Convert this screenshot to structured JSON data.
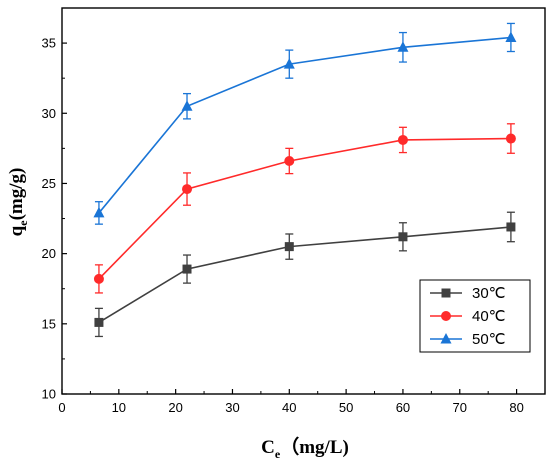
{
  "chart_data": {
    "type": "line",
    "xlabel": {
      "main": "C",
      "sub": "e",
      "rest": "（mg/L)"
    },
    "ylabel": {
      "main": "q",
      "sub": "e",
      "rest": "(mg/g)"
    },
    "xlim": [
      0,
      85
    ],
    "ylim": [
      10,
      37.5
    ],
    "xticks": [
      0,
      10,
      20,
      30,
      40,
      50,
      60,
      70,
      80
    ],
    "yticks": [
      10,
      15,
      20,
      25,
      30,
      35
    ],
    "grid": false,
    "legend_position": "bottom-right",
    "x": [
      6.5,
      22,
      40,
      60,
      79
    ],
    "series": [
      {
        "name": "30℃",
        "color": "#404040",
        "marker": "square",
        "values": [
          15.1,
          18.9,
          20.5,
          21.2,
          21.9
        ],
        "errors": [
          1.0,
          1.0,
          0.9,
          1.0,
          1.05
        ]
      },
      {
        "name": "40℃",
        "color": "#ff2a2a",
        "marker": "circle",
        "values": [
          18.2,
          24.6,
          26.6,
          28.1,
          28.2
        ],
        "errors": [
          1.0,
          1.15,
          0.9,
          0.9,
          1.05
        ]
      },
      {
        "name": "50℃",
        "color": "#1a75d6",
        "marker": "triangle",
        "values": [
          22.9,
          30.5,
          33.5,
          34.7,
          35.4
        ],
        "errors": [
          0.8,
          0.9,
          1.0,
          1.05,
          1.0
        ]
      }
    ]
  }
}
